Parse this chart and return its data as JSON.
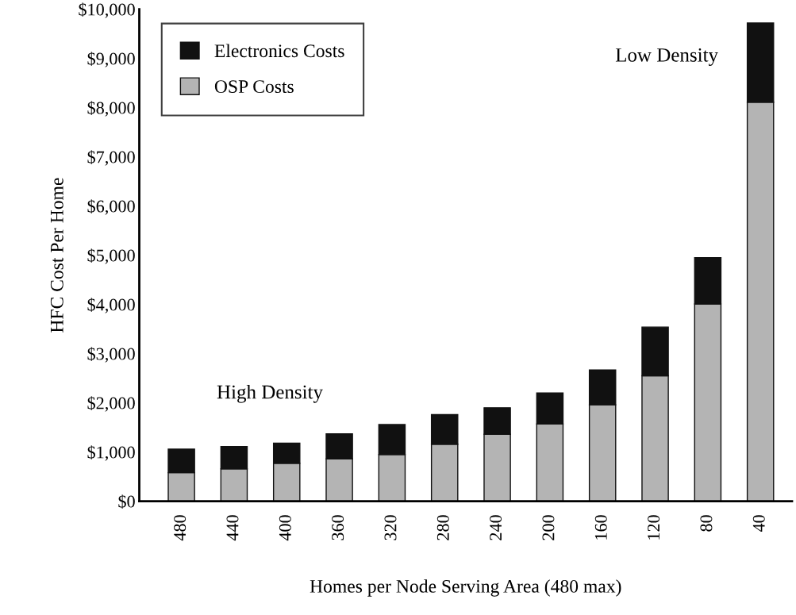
{
  "chart_data": {
    "type": "bar",
    "stacked": true,
    "xlabel": "Homes per Node Serving Area (480 max)",
    "ylabel": "HFC Cost Per Home",
    "categories": [
      "480",
      "440",
      "400",
      "360",
      "320",
      "280",
      "240",
      "200",
      "160",
      "120",
      "80",
      "40"
    ],
    "series": [
      {
        "name": "OSP Costs",
        "color": "#b4b4b4",
        "values": [
          580,
          660,
          770,
          860,
          950,
          1160,
          1360,
          1570,
          1960,
          2550,
          4010,
          8110
        ]
      },
      {
        "name": "Electronics Costs",
        "color": "#111111",
        "values": [
          480,
          450,
          410,
          510,
          610,
          600,
          540,
          630,
          710,
          990,
          940,
          1610
        ]
      }
    ],
    "ylim": [
      0,
      10000
    ],
    "yticks": [
      {
        "value": 0,
        "label": "$0"
      },
      {
        "value": 1000,
        "label": "$1,000"
      },
      {
        "value": 2000,
        "label": "$2,000"
      },
      {
        "value": 3000,
        "label": "$3,000"
      },
      {
        "value": 4000,
        "label": "$4,000"
      },
      {
        "value": 5000,
        "label": "$5,000"
      },
      {
        "value": 6000,
        "label": "$6,000"
      },
      {
        "value": 7000,
        "label": "$7,000"
      },
      {
        "value": 8000,
        "label": "$8,000"
      },
      {
        "value": 9000,
        "label": "$9,000"
      },
      {
        "value": 10000,
        "label": "$10,000"
      }
    ],
    "annotations": [
      "High Density",
      "Low Density"
    ],
    "legend": "top left",
    "grid": false
  }
}
